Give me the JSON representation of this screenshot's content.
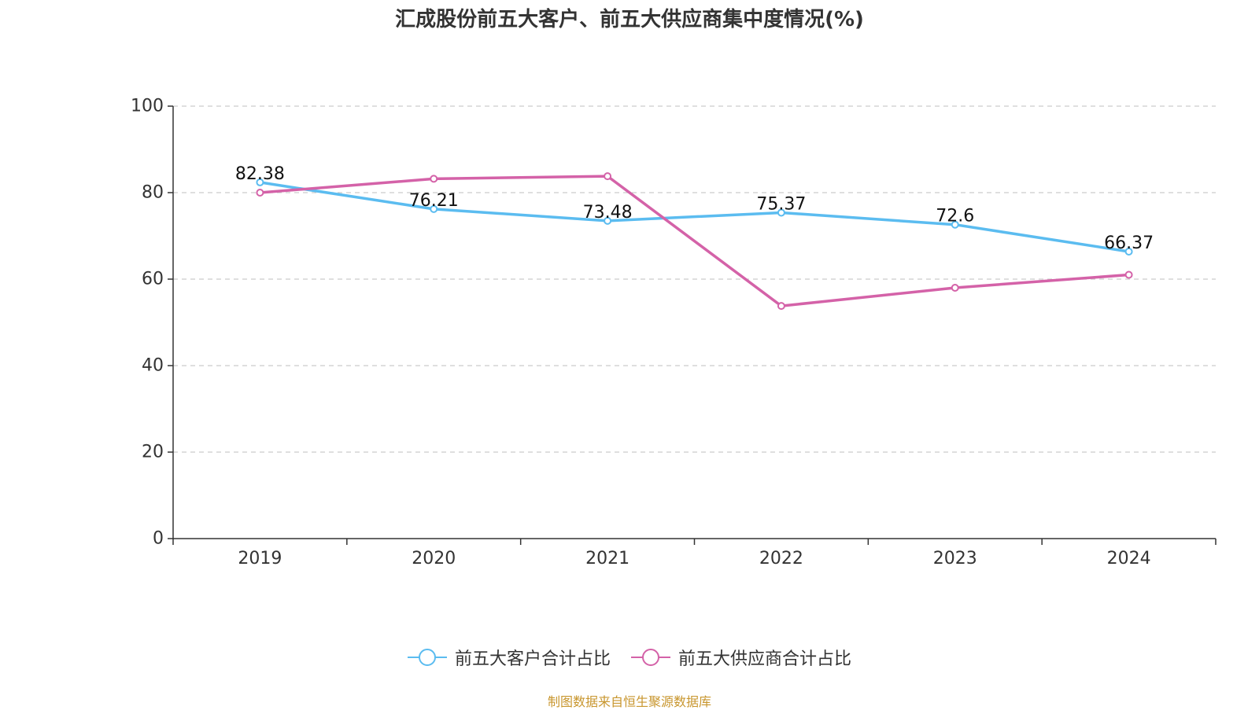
{
  "chart_data": {
    "type": "line",
    "title": "汇成股份前五大客户、前五大供应商集中度情况(%)",
    "categories": [
      "2019",
      "2020",
      "2021",
      "2022",
      "2023",
      "2024"
    ],
    "ylim": [
      0,
      100
    ],
    "yticks": [
      0,
      20,
      40,
      60,
      80,
      100
    ],
    "grid": true,
    "legend_position": "bottom",
    "series": [
      {
        "name": "前五大客户合计占比",
        "color": "#5bbcf0",
        "values": [
          82.38,
          76.21,
          73.48,
          75.37,
          72.6,
          66.37
        ],
        "labels": [
          "82.38",
          "76.21",
          "73.48",
          "75.37",
          "72.6",
          "66.37"
        ]
      },
      {
        "name": "前五大供应商合计占比",
        "color": "#d462a8",
        "values": [
          80.0,
          83.2,
          83.8,
          53.8,
          58.0,
          61.0
        ],
        "labels": []
      }
    ]
  },
  "source_note": "制图数据来自恒生聚源数据库"
}
